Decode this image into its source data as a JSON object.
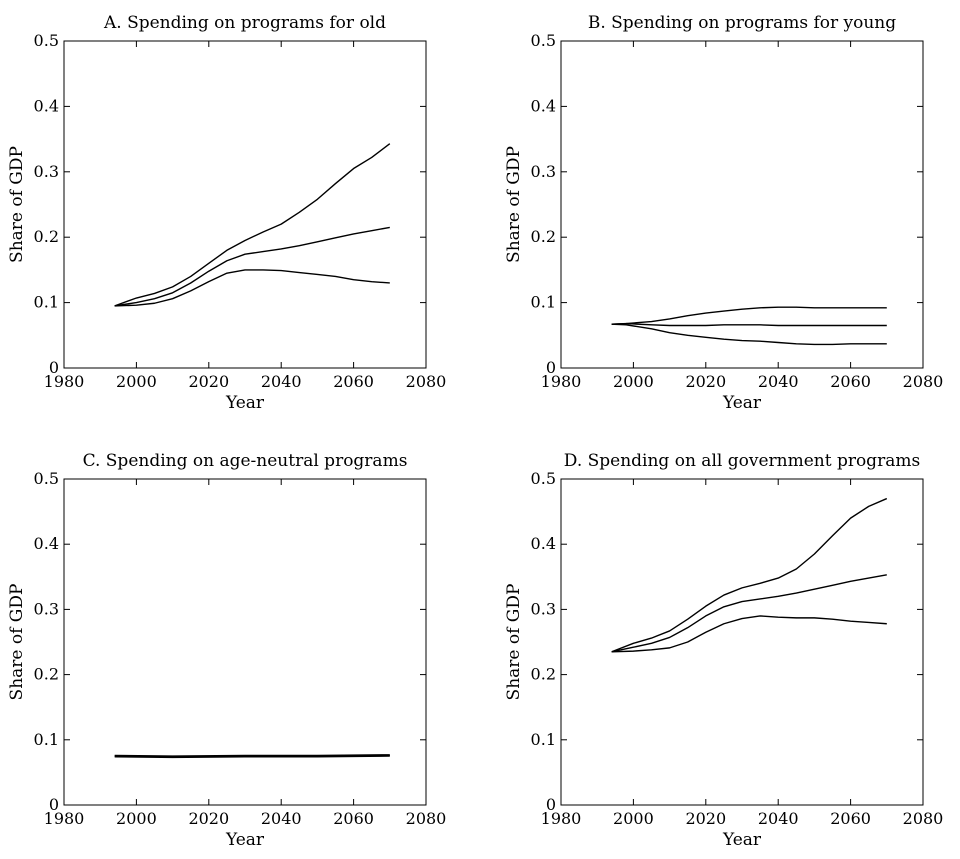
{
  "chart_data": [
    {
      "type": "line",
      "title": "A. Spending on programs for old",
      "xlabel": "Year",
      "ylabel": "Share of GDP",
      "xlim": [
        1980,
        2080
      ],
      "ylim": [
        0,
        0.5
      ],
      "xticks": [
        "1980",
        "2000",
        "2020",
        "2040",
        "2060",
        "2080"
      ],
      "yticks": [
        "0",
        "0.1",
        "0.2",
        "0.3",
        "0.4",
        "0.5"
      ],
      "grid": false,
      "series": [
        {
          "x": [
            1994,
            2000,
            2005,
            2010,
            2015,
            2020,
            2025,
            2030,
            2035,
            2040,
            2045,
            2050,
            2055,
            2060,
            2065,
            2070
          ],
          "values": [
            0.095,
            0.107,
            0.114,
            0.124,
            0.14,
            0.16,
            0.18,
            0.195,
            0.208,
            0.22,
            0.238,
            0.258,
            0.282,
            0.305,
            0.322,
            0.343
          ]
        },
        {
          "x": [
            1994,
            2000,
            2005,
            2010,
            2015,
            2020,
            2025,
            2030,
            2035,
            2040,
            2045,
            2050,
            2055,
            2060,
            2065,
            2070
          ],
          "values": [
            0.095,
            0.1,
            0.106,
            0.115,
            0.13,
            0.148,
            0.164,
            0.174,
            0.178,
            0.182,
            0.187,
            0.193,
            0.199,
            0.205,
            0.21,
            0.215
          ]
        },
        {
          "x": [
            1994,
            2000,
            2005,
            2010,
            2015,
            2020,
            2025,
            2030,
            2035,
            2040,
            2045,
            2050,
            2055,
            2060,
            2065,
            2070
          ],
          "values": [
            0.095,
            0.096,
            0.099,
            0.106,
            0.118,
            0.132,
            0.145,
            0.15,
            0.15,
            0.149,
            0.146,
            0.143,
            0.14,
            0.135,
            0.132,
            0.13
          ]
        }
      ]
    },
    {
      "type": "line",
      "title": "B. Spending on programs for young",
      "xlabel": "Year",
      "ylabel": "Share of GDP",
      "xlim": [
        1980,
        2080
      ],
      "ylim": [
        0,
        0.5
      ],
      "xticks": [
        "1980",
        "2000",
        "2020",
        "2040",
        "2060",
        "2080"
      ],
      "yticks": [
        "0",
        "0.1",
        "0.2",
        "0.3",
        "0.4",
        "0.5"
      ],
      "grid": false,
      "series": [
        {
          "x": [
            1994,
            1998,
            2005,
            2010,
            2015,
            2020,
            2025,
            2030,
            2035,
            2040,
            2045,
            2050,
            2055,
            2060,
            2065,
            2070
          ],
          "values": [
            0.067,
            0.068,
            0.071,
            0.075,
            0.08,
            0.084,
            0.087,
            0.09,
            0.092,
            0.093,
            0.093,
            0.092,
            0.092,
            0.092,
            0.092,
            0.092
          ]
        },
        {
          "x": [
            1994,
            1998,
            2005,
            2010,
            2015,
            2020,
            2025,
            2030,
            2035,
            2040,
            2045,
            2050,
            2055,
            2060,
            2065,
            2070
          ],
          "values": [
            0.067,
            0.068,
            0.066,
            0.065,
            0.065,
            0.065,
            0.066,
            0.066,
            0.066,
            0.065,
            0.065,
            0.065,
            0.065,
            0.065,
            0.065,
            0.065
          ]
        },
        {
          "x": [
            1994,
            1998,
            2005,
            2010,
            2015,
            2020,
            2025,
            2030,
            2035,
            2040,
            2045,
            2050,
            2055,
            2060,
            2065,
            2070
          ],
          "values": [
            0.067,
            0.066,
            0.06,
            0.054,
            0.05,
            0.047,
            0.044,
            0.042,
            0.041,
            0.039,
            0.037,
            0.036,
            0.036,
            0.037,
            0.037,
            0.037
          ]
        }
      ]
    },
    {
      "type": "line",
      "title": "C. Spending on age-neutral programs",
      "xlabel": "Year",
      "ylabel": "Share of GDP",
      "xlim": [
        1980,
        2080
      ],
      "ylim": [
        0,
        0.5
      ],
      "xticks": [
        "1980",
        "2000",
        "2020",
        "2040",
        "2060",
        "2080"
      ],
      "yticks": [
        "0",
        "0.1",
        "0.2",
        "0.3",
        "0.4",
        "0.5"
      ],
      "grid": false,
      "series": [
        {
          "x": [
            1994,
            2010,
            2030,
            2050,
            2070
          ],
          "values": [
            0.076,
            0.075,
            0.076,
            0.076,
            0.077
          ]
        },
        {
          "x": [
            1994,
            2010,
            2030,
            2050,
            2070
          ],
          "values": [
            0.075,
            0.074,
            0.075,
            0.075,
            0.076
          ]
        },
        {
          "x": [
            1994,
            2010,
            2030,
            2050,
            2070
          ],
          "values": [
            0.074,
            0.073,
            0.074,
            0.074,
            0.075
          ]
        }
      ]
    },
    {
      "type": "line",
      "title": "D. Spending on all government programs",
      "xlabel": "Year",
      "ylabel": "Share of GDP",
      "xlim": [
        1980,
        2080
      ],
      "ylim": [
        0,
        0.5
      ],
      "xticks": [
        "1980",
        "2000",
        "2020",
        "2040",
        "2060",
        "2080"
      ],
      "yticks": [
        "0",
        "0.1",
        "0.2",
        "0.3",
        "0.4",
        "0.5"
      ],
      "grid": false,
      "series": [
        {
          "x": [
            1994,
            2000,
            2005,
            2010,
            2015,
            2020,
            2025,
            2030,
            2035,
            2040,
            2045,
            2050,
            2055,
            2060,
            2065,
            2070
          ],
          "values": [
            0.235,
            0.248,
            0.256,
            0.267,
            0.285,
            0.305,
            0.322,
            0.333,
            0.34,
            0.348,
            0.362,
            0.385,
            0.413,
            0.44,
            0.458,
            0.47
          ]
        },
        {
          "x": [
            1994,
            2000,
            2005,
            2010,
            2015,
            2020,
            2025,
            2030,
            2035,
            2040,
            2045,
            2050,
            2055,
            2060,
            2065,
            2070
          ],
          "values": [
            0.235,
            0.242,
            0.248,
            0.257,
            0.272,
            0.29,
            0.304,
            0.312,
            0.316,
            0.32,
            0.325,
            0.331,
            0.337,
            0.343,
            0.348,
            0.353
          ]
        },
        {
          "x": [
            1994,
            2000,
            2005,
            2010,
            2015,
            2020,
            2025,
            2030,
            2035,
            2040,
            2045,
            2050,
            2055,
            2060,
            2065,
            2070
          ],
          "values": [
            0.235,
            0.236,
            0.238,
            0.241,
            0.25,
            0.265,
            0.278,
            0.286,
            0.29,
            0.288,
            0.287,
            0.287,
            0.285,
            0.282,
            0.28,
            0.278
          ]
        }
      ]
    }
  ]
}
